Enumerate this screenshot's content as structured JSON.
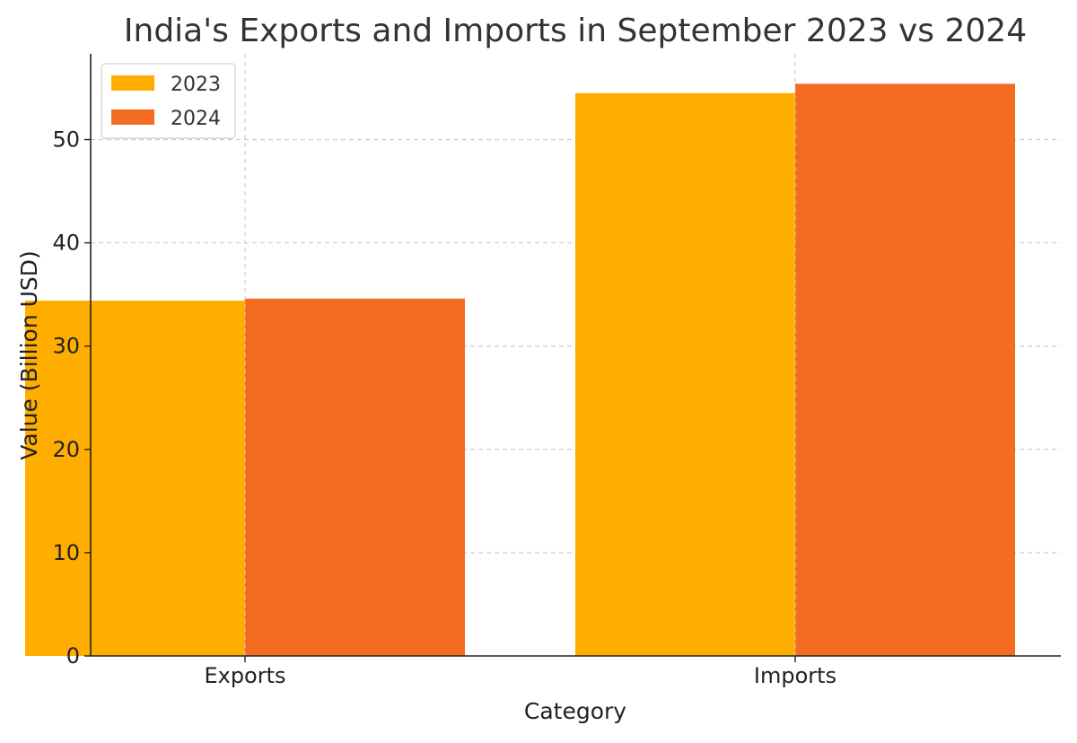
{
  "chart_data": {
    "type": "bar",
    "title": "India's Exports and Imports in September 2023 vs 2024",
    "xlabel": "Category",
    "ylabel": "Value (Billion USD)",
    "categories": [
      "Exports",
      "Imports"
    ],
    "series": [
      {
        "name": "2023",
        "values": [
          34.4,
          54.5
        ],
        "color": "#FFAE00"
      },
      {
        "name": "2024",
        "values": [
          34.6,
          55.4
        ],
        "color": "#F46B22"
      }
    ],
    "ylim": [
      0,
      58.3
    ],
    "yticks": [
      "0",
      "10",
      "20",
      "30",
      "40",
      "50"
    ],
    "grid": true,
    "legend_position": "top-left"
  }
}
